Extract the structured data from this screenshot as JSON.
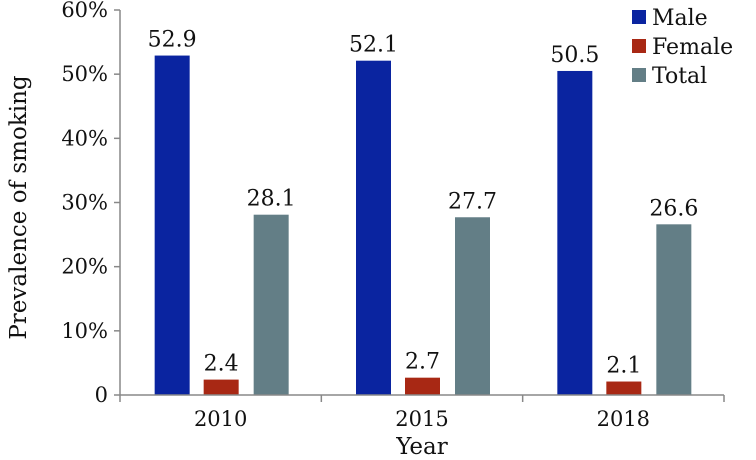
{
  "chart_data": {
    "type": "bar",
    "categories": [
      "2010",
      "2015",
      "2018"
    ],
    "series": [
      {
        "name": "Male",
        "values": [
          52.9,
          52.1,
          50.5
        ],
        "color": "#0a24a0"
      },
      {
        "name": "Female",
        "values": [
          2.4,
          2.7,
          2.1
        ],
        "color": "#a82814"
      },
      {
        "name": "Total",
        "values": [
          28.1,
          27.7,
          26.6
        ],
        "color": "#637e86"
      }
    ],
    "data_labels": [
      [
        "52.9",
        "52.1",
        "50.5"
      ],
      [
        "2.4",
        "2.7",
        "2.1"
      ],
      [
        "28.1",
        "27.7",
        "26.6"
      ]
    ],
    "xlabel": "Year",
    "ylabel": "Prevalence of smoking",
    "ylim": [
      0,
      60
    ],
    "yticks": [
      0,
      10,
      20,
      30,
      40,
      50,
      60
    ],
    "ytick_labels": [
      "0",
      "10%",
      "20%",
      "30%",
      "40%",
      "50%",
      "60%"
    ],
    "grid": false,
    "legend_position": "top-right"
  }
}
